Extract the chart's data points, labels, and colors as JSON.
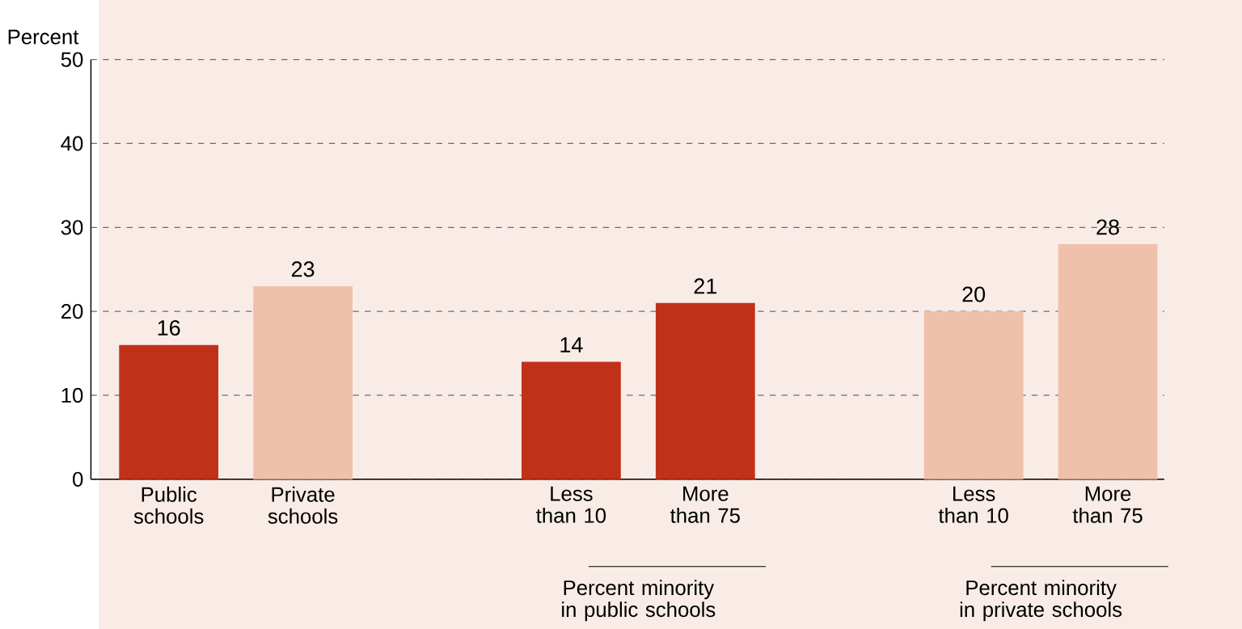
{
  "chart_data": {
    "type": "bar",
    "ylabel": "Percent",
    "categories": [
      "Public schools",
      "Private schools",
      null,
      "Less than 10",
      "More than 75",
      null,
      "Less than 10",
      "More than 75"
    ],
    "values": [
      16,
      23,
      null,
      14,
      21,
      null,
      20,
      28
    ],
    "colors": [
      "#c0311a",
      "#efc1aa",
      null,
      "#c0311a",
      "#c0311a",
      null,
      "#efc1aa",
      "#efc1aa"
    ],
    "ylim": [
      0,
      50
    ],
    "yticks": [
      0,
      10,
      20,
      30,
      40,
      50
    ],
    "grid": "y",
    "data_labels": true,
    "annotations": [
      "Percent minority in public schools",
      "Percent minority in private schools"
    ]
  }
}
